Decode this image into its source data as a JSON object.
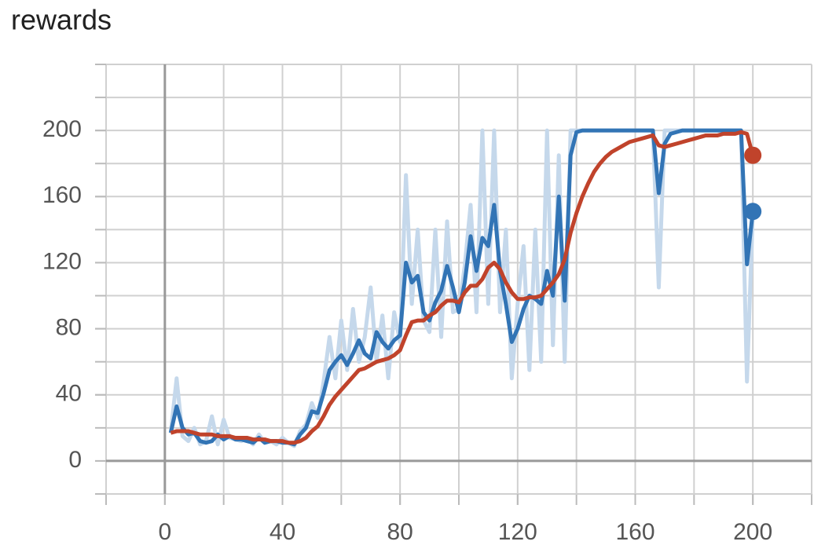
{
  "chart_data": {
    "type": "line",
    "title": "rewards",
    "x": [
      2,
      4,
      6,
      8,
      10,
      12,
      14,
      16,
      18,
      20,
      22,
      24,
      26,
      28,
      30,
      32,
      34,
      36,
      38,
      40,
      42,
      44,
      46,
      48,
      50,
      52,
      54,
      56,
      58,
      60,
      62,
      64,
      66,
      68,
      70,
      72,
      74,
      76,
      78,
      80,
      82,
      84,
      86,
      88,
      90,
      92,
      94,
      96,
      98,
      100,
      102,
      104,
      106,
      108,
      110,
      112,
      114,
      116,
      118,
      120,
      122,
      124,
      126,
      128,
      130,
      132,
      134,
      136,
      138,
      140,
      142,
      144,
      146,
      148,
      150,
      152,
      154,
      156,
      158,
      160,
      162,
      164,
      166,
      168,
      170,
      172,
      174,
      176,
      178,
      180,
      182,
      184,
      186,
      188,
      190,
      192,
      194,
      196,
      198,
      200
    ],
    "series": [
      {
        "color": "#c5d8eb",
        "values": [
          17,
          50,
          15,
          12,
          20,
          10,
          12,
          27,
          10,
          25,
          14,
          13,
          12,
          14,
          10,
          16,
          11,
          12,
          10,
          14,
          11,
          9,
          18,
          22,
          35,
          26,
          48,
          75,
          50,
          85,
          55,
          92,
          60,
          75,
          105,
          60,
          88,
          50,
          90,
          72,
          173,
          95,
          140,
          85,
          78,
          140,
          75,
          145,
          90,
          92,
          118,
          155,
          90,
          200,
          95,
          200,
          90,
          140,
          50,
          95,
          130,
          55,
          140,
          60,
          200,
          70,
          185,
          60,
          200,
          200,
          200,
          200,
          200,
          200,
          200,
          200,
          200,
          200,
          200,
          200,
          200,
          200,
          200,
          105,
          200,
          200,
          200,
          200,
          200,
          200,
          200,
          200,
          200,
          200,
          200,
          200,
          200,
          200,
          48,
          151
        ]
      },
      {
        "color": "#3274b5",
        "values": [
          17,
          33,
          20,
          16,
          17,
          12,
          11,
          12,
          16,
          13,
          15,
          13,
          13,
          12,
          11,
          14,
          11,
          12,
          12,
          11,
          11,
          10,
          16,
          20,
          30,
          29,
          41,
          55,
          60,
          64,
          58,
          65,
          73,
          65,
          62,
          78,
          72,
          68,
          73,
          76,
          120,
          108,
          112,
          90,
          85,
          96,
          103,
          118,
          105,
          90,
          108,
          136,
          115,
          135,
          130,
          155,
          115,
          95,
          72,
          80,
          92,
          100,
          98,
          95,
          115,
          100,
          160,
          97,
          185,
          199,
          200,
          200,
          200,
          200,
          200,
          200,
          200,
          200,
          200,
          200,
          200,
          200,
          200,
          162,
          192,
          198,
          199,
          200,
          200,
          200,
          200,
          200,
          200,
          200,
          200,
          200,
          200,
          200,
          119,
          151
        ]
      },
      {
        "color": "#c0432b",
        "values": [
          17,
          18,
          18,
          18,
          17,
          16,
          16,
          16,
          15,
          15,
          15,
          14,
          14,
          14,
          13,
          13,
          13,
          12,
          12,
          12,
          11,
          11,
          12,
          14,
          18,
          21,
          27,
          34,
          39,
          43,
          47,
          51,
          55,
          56,
          58,
          60,
          61,
          62,
          64,
          67,
          76,
          84,
          85,
          85,
          88,
          90,
          94,
          97,
          97,
          96,
          102,
          106,
          106,
          110,
          117,
          120,
          116,
          108,
          102,
          98,
          98,
          99,
          99,
          100,
          104,
          108,
          113,
          122,
          138,
          150,
          160,
          168,
          175,
          180,
          184,
          187,
          189,
          191,
          193,
          194,
          195,
          196,
          197,
          191,
          190,
          191,
          192,
          193,
          194,
          195,
          196,
          197,
          197,
          197,
          198,
          198,
          198,
          199,
          198,
          185
        ]
      }
    ],
    "xlim": [
      -20,
      220
    ],
    "xticks": [
      0,
      40,
      80,
      120,
      160,
      200
    ],
    "ylim": [
      -20,
      240
    ],
    "yticks": [
      0,
      40,
      80,
      120,
      160,
      200
    ],
    "grid": true
  }
}
